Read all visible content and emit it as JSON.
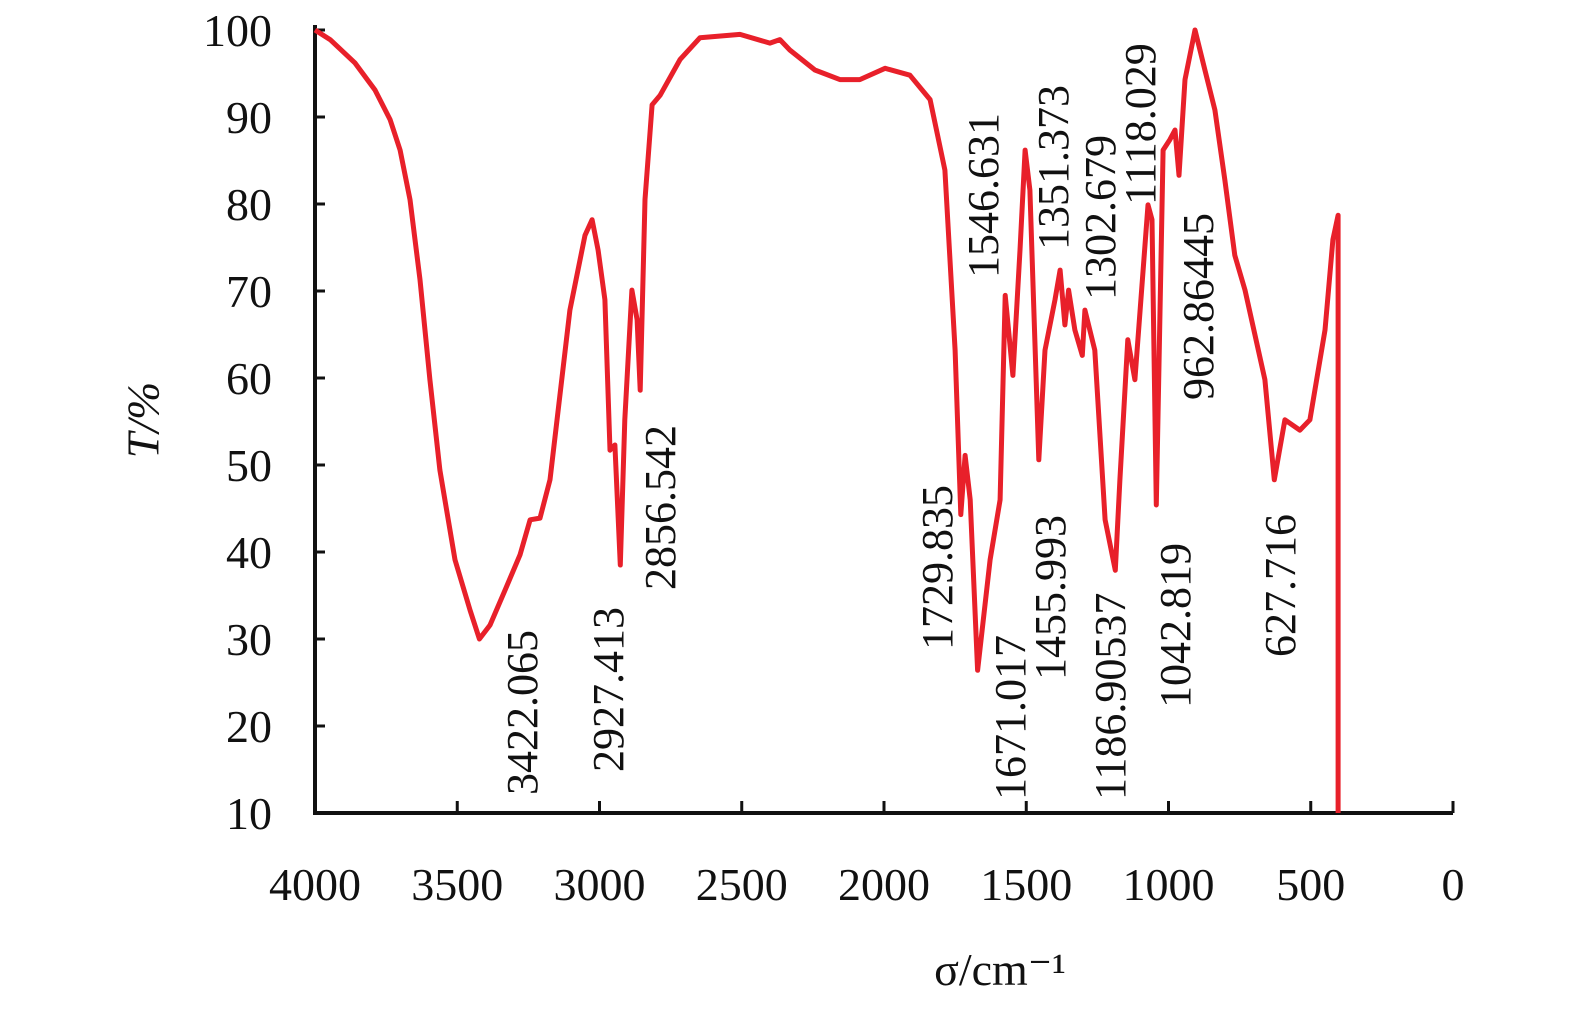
{
  "chart_data": {
    "type": "line",
    "x_label": "σ/cm⁻¹",
    "y_label": "T/%",
    "xlim": [
      4000,
      0
    ],
    "ylim": [
      10,
      100
    ],
    "xticks": [
      4000,
      3500,
      3000,
      2500,
      2000,
      1500,
      1000,
      500,
      0
    ],
    "yticks": [
      10,
      20,
      30,
      40,
      50,
      60,
      70,
      80,
      90,
      100
    ],
    "grid": false,
    "series": [
      {
        "color": "#e8202a",
        "x": [
          4000,
          3947,
          3859,
          3789,
          3736,
          3701,
          3666,
          3631,
          3596,
          3561,
          3508,
          3455,
          3422,
          3385,
          3332,
          3279,
          3244,
          3209,
          3174,
          3104,
          3051,
          3026,
          3005,
          2981,
          2963,
          2946,
          2927,
          2911,
          2886,
          2868,
          2857,
          2840,
          2815,
          2787,
          2717,
          2647,
          2506,
          2401,
          2366,
          2331,
          2243,
          2155,
          2085,
          1996,
          1909,
          1838,
          1786,
          1750,
          1730,
          1715,
          1697,
          1671,
          1627,
          1592,
          1574,
          1547,
          1522,
          1504,
          1487,
          1456,
          1434,
          1399,
          1381,
          1364,
          1351,
          1329,
          1303,
          1294,
          1259,
          1223,
          1187,
          1171,
          1143,
          1118,
          1072,
          1058,
          1043,
          1019,
          995,
          977,
          963,
          942,
          907,
          872,
          837,
          802,
          767,
          731,
          661,
          628,
          591,
          538,
          503,
          450,
          422,
          404,
          404
        ],
        "values": [
          100,
          98.9,
          96.2,
          93.1,
          89.7,
          86.2,
          80.5,
          71.3,
          59.8,
          49.4,
          39.1,
          33.3,
          30,
          31.6,
          35.6,
          39.7,
          43.7,
          43.9,
          48.3,
          67.8,
          76.4,
          78.2,
          74.7,
          69,
          51.7,
          52.3,
          38.5,
          55.2,
          70.1,
          66.7,
          58.6,
          80.5,
          91.4,
          92.5,
          96.6,
          99.1,
          99.5,
          98.5,
          98.9,
          97.7,
          95.4,
          94.3,
          94.3,
          95.6,
          94.8,
          92,
          83.9,
          63.2,
          44.3,
          51.1,
          46,
          26.4,
          39.1,
          46,
          69.5,
          60.3,
          74.7,
          86.2,
          81.6,
          50.6,
          63.2,
          69,
          72.4,
          66.1,
          70.1,
          65.5,
          62.6,
          67.8,
          63.2,
          43.7,
          37.9,
          48.3,
          64.4,
          59.8,
          79.9,
          78.2,
          45.4,
          86.2,
          87.4,
          88.5,
          83.3,
          94.3,
          100,
          95.4,
          90.8,
          82.8,
          74.1,
          70.1,
          59.8,
          48.3,
          55.2,
          54,
          55.2,
          65.5,
          75.9,
          78.7,
          10
        ]
      }
    ],
    "annotations": [
      "3422.065",
      "2927.413",
      "2856.542",
      "1729.835",
      "1671.017",
      "1546.631",
      "1455.993",
      "1351.373",
      "1302.679",
      "1186.90537",
      "1118.029",
      "1042.819",
      "962.86445",
      "627.716"
    ]
  }
}
